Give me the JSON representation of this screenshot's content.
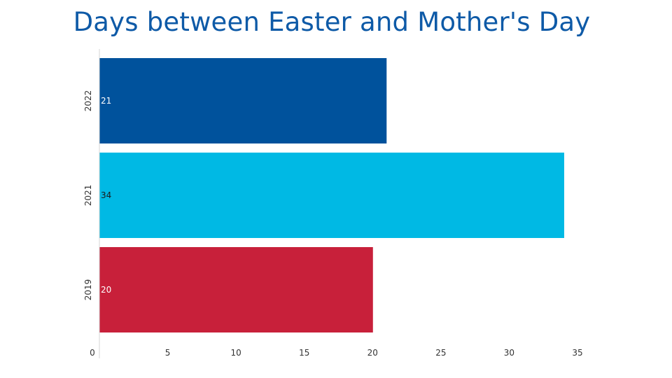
{
  "chart_data": {
    "type": "bar",
    "orientation": "horizontal",
    "title": "Days between Easter and Mother's Day",
    "xlabel": "",
    "ylabel": "",
    "categories": [
      "2022",
      "2021",
      "2019"
    ],
    "values": [
      21,
      34,
      20
    ],
    "data_labels": [
      "21",
      "34",
      "20"
    ],
    "bar_colors": [
      "#00529c",
      "#00b9e4",
      "#c8203a"
    ],
    "data_label_colors": [
      "#ffffff",
      "#1a1a1a",
      "#ffffff"
    ],
    "xlim": [
      0,
      35
    ],
    "xticks": [
      0,
      5,
      10,
      15,
      20,
      25,
      30,
      35
    ],
    "xtick_labels": [
      "0",
      "5",
      "10",
      "15",
      "20",
      "25",
      "30",
      "35"
    ],
    "grid": false,
    "legend": "none"
  },
  "colors": {
    "title": "#0e5aa7",
    "axis_line": "#d6d6d6"
  }
}
